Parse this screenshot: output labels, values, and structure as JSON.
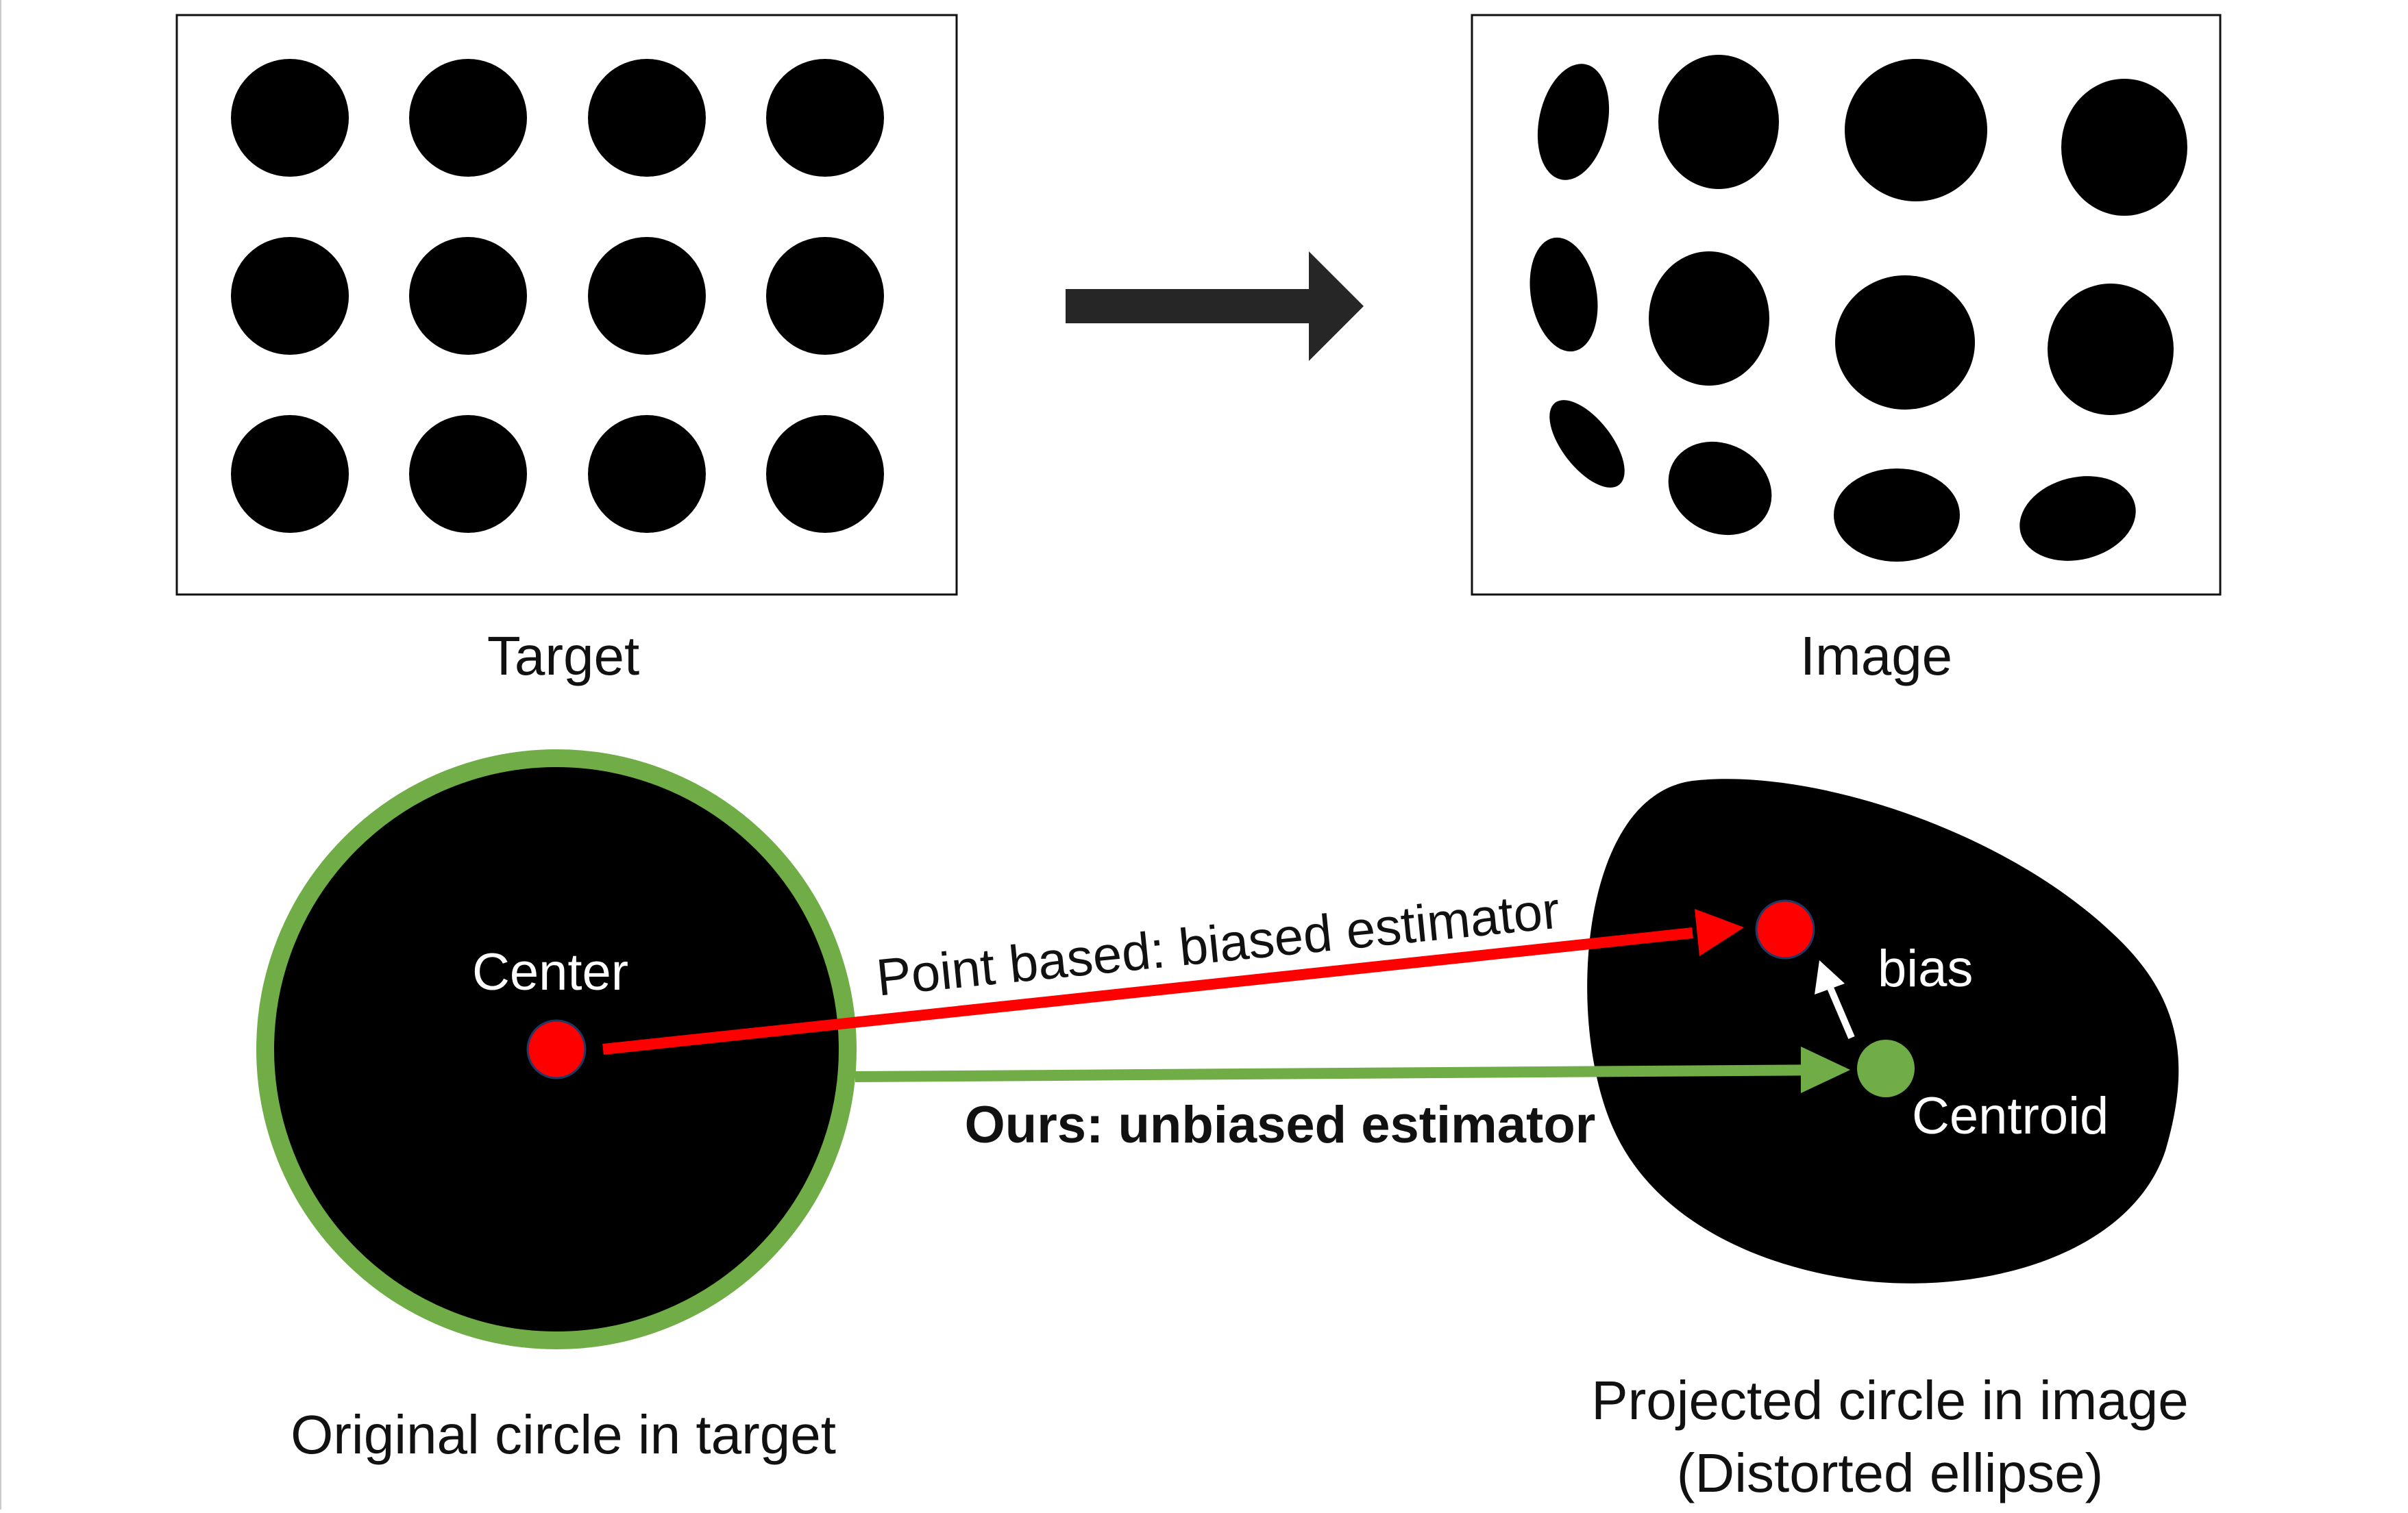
{
  "panels": {
    "target_label": "Target",
    "image_label": "Image"
  },
  "bottom": {
    "center_label": "Center",
    "point_based_label": "Point based: biased estimator",
    "ours_label": "Ours: unbiased estimator",
    "bias_label": "bias",
    "centroid_label": "Centroid",
    "original_caption": "Original circle in target",
    "projected_caption_line1": "Projected circle in image",
    "projected_caption_line2": "(Distorted ellipse)"
  },
  "colors": {
    "background": "#ffffff",
    "blob": "#000000",
    "green": "#70ad47",
    "red": "#ff0000",
    "arrow_dark": "#262626",
    "white": "#ffffff"
  }
}
